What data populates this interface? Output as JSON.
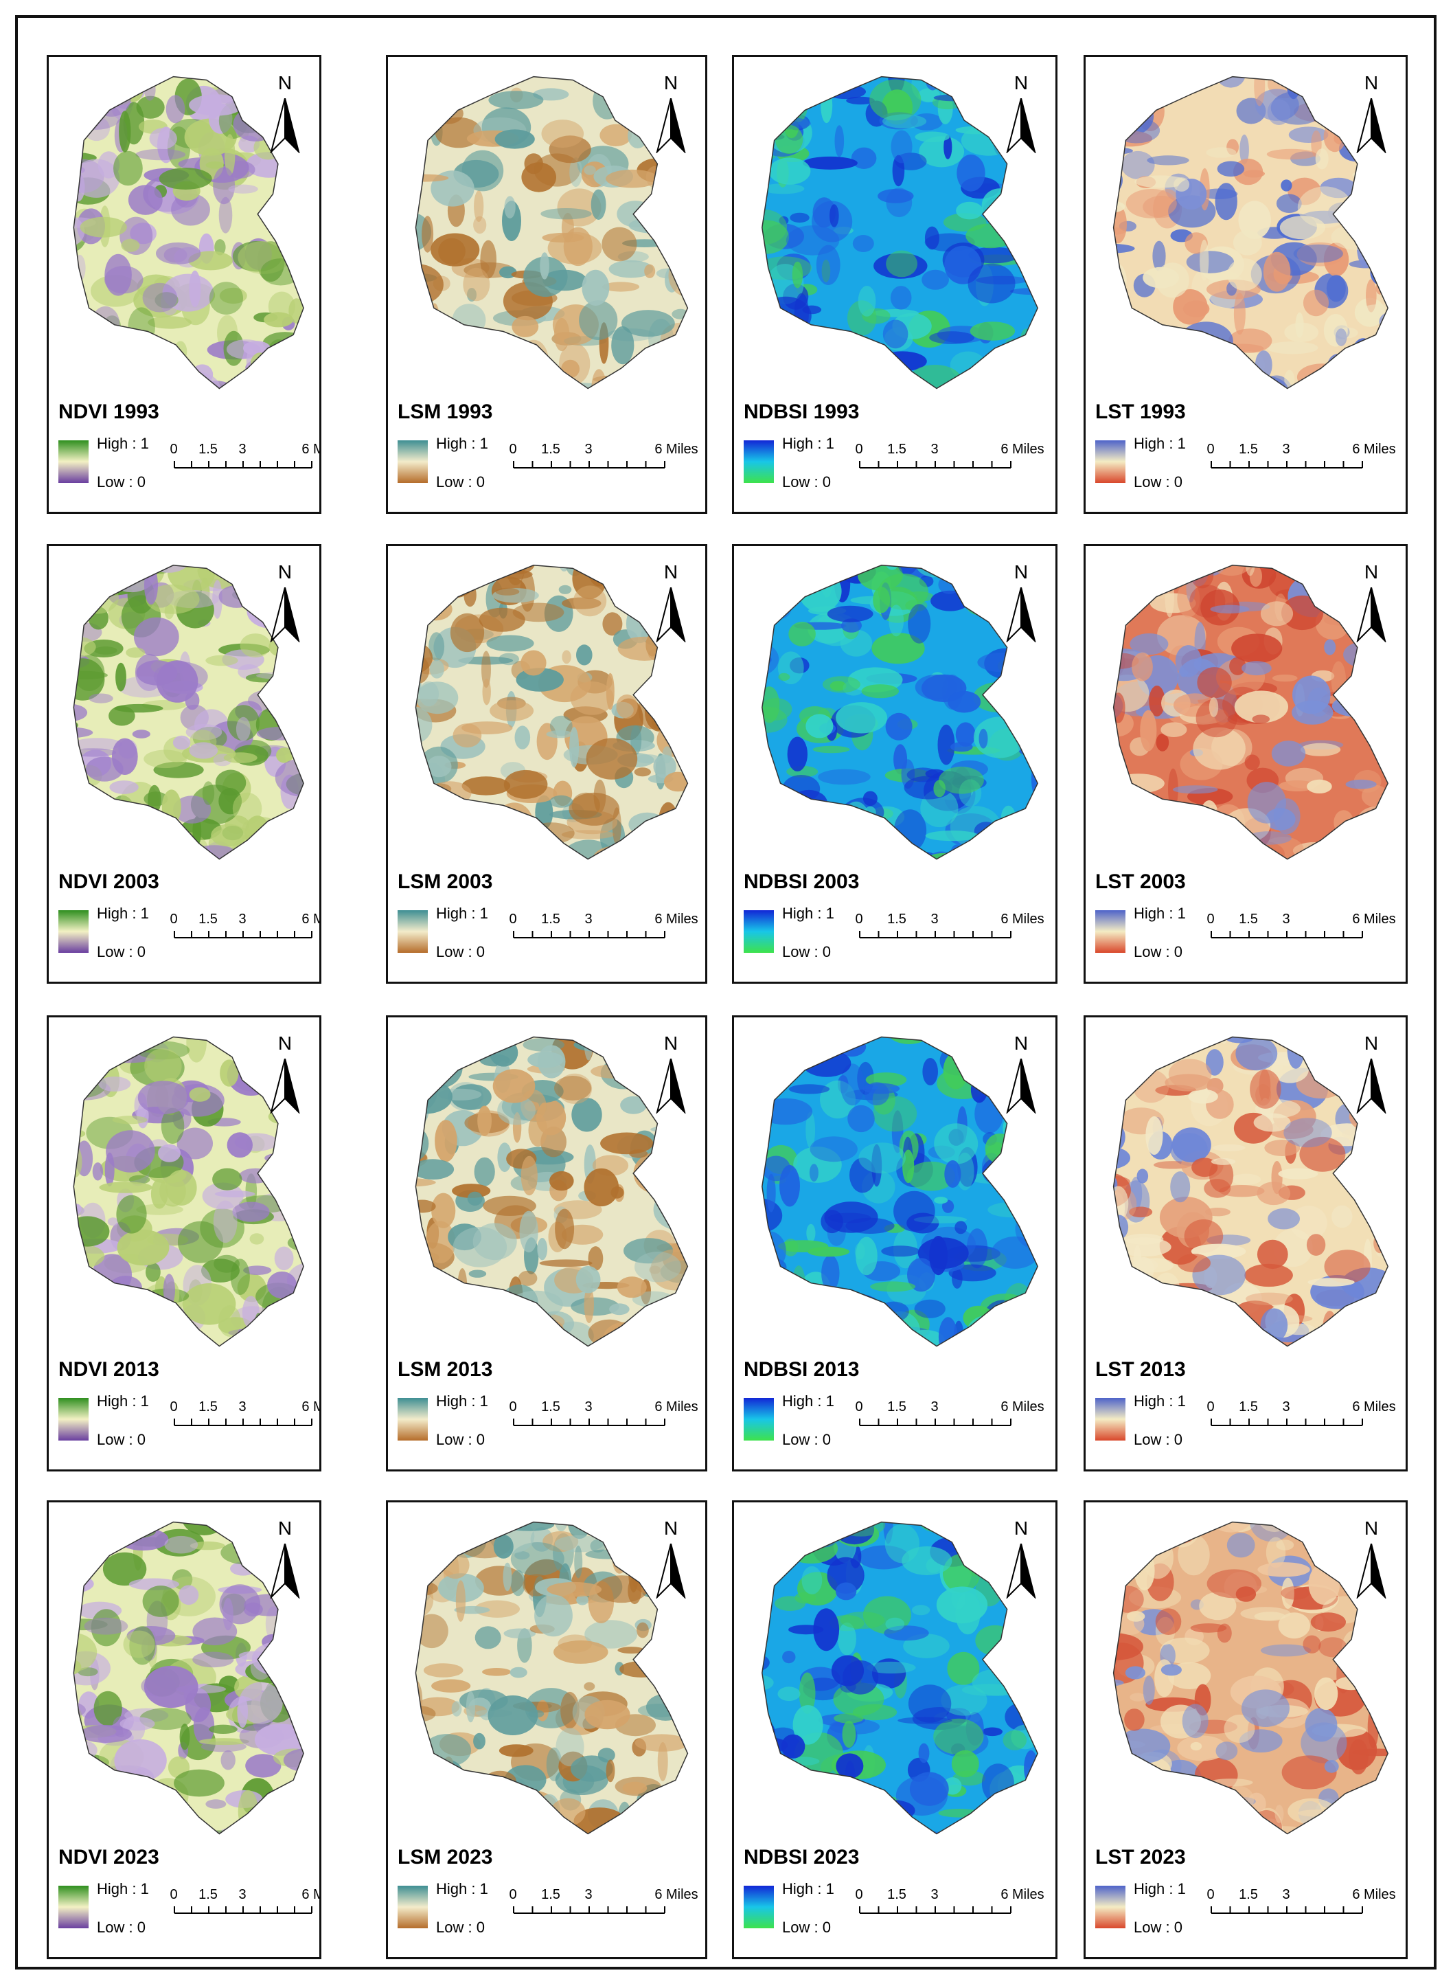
{
  "figure": {
    "panels": [
      {
        "title": "NDVI 1993",
        "palette": "ndvi"
      },
      {
        "title": "LSM 1993",
        "palette": "lsm"
      },
      {
        "title": "NDBSI 1993",
        "palette": "ndbsi"
      },
      {
        "title": "LST 1993",
        "palette": "lst1993"
      },
      {
        "title": "NDVI 2003",
        "palette": "ndvi"
      },
      {
        "title": "LSM 2003",
        "palette": "lsm"
      },
      {
        "title": "NDBSI 2003",
        "palette": "ndbsi"
      },
      {
        "title": "LST 2003",
        "palette": "lst2003"
      },
      {
        "title": "NDVI 2013",
        "palette": "ndvi"
      },
      {
        "title": "LSM 2013",
        "palette": "lsm"
      },
      {
        "title": "NDBSI 2013",
        "palette": "ndbsi"
      },
      {
        "title": "LST 2013",
        "palette": "lst2013"
      },
      {
        "title": "NDVI 2023",
        "palette": "ndvi"
      },
      {
        "title": "LSM 2023",
        "palette": "lsm"
      },
      {
        "title": "NDBSI 2023",
        "palette": "ndbsi"
      },
      {
        "title": "LST 2023",
        "palette": "lst2023"
      }
    ],
    "legend": {
      "high": "High : 1",
      "low": "Low : 0"
    },
    "north_label": "N",
    "scale_labels": [
      "0",
      "1.5",
      "3",
      "6 Miles"
    ],
    "palettes": {
      "ndvi": {
        "ramp": [
          "#2f8f1f",
          "#f3f1c4",
          "#6a3fa0"
        ],
        "fill": [
          "#e7edb8",
          "#b7cf74",
          "#5b9a30",
          "#c6aee0",
          "#9b7bc8"
        ]
      },
      "lsm": {
        "ramp": [
          "#3e8f93",
          "#f3eccb",
          "#b56d2b"
        ],
        "fill": [
          "#e9e6c6",
          "#9fc3bd",
          "#5e9c9c",
          "#d4a46a",
          "#b0712e"
        ]
      },
      "ndbsi": {
        "ramp": [
          "#1226d6",
          "#18c6e8",
          "#3ee24c"
        ],
        "fill": [
          "#1aa7e6",
          "#1f62e0",
          "#1234cf",
          "#33d2c9",
          "#42cc5a"
        ]
      },
      "lst1993": {
        "ramp": [
          "#4e63c9",
          "#f4ecc4",
          "#d9482c"
        ],
        "fill": [
          "#f2dcb4",
          "#e89a74",
          "#7d8fd6",
          "#4d6bd2",
          "#f1e7c2"
        ]
      },
      "lst2003": {
        "ramp": [
          "#4e63c9",
          "#f4ecc4",
          "#d9482c"
        ],
        "fill": [
          "#e07958",
          "#cf4630",
          "#f2dcb4",
          "#7a90d8",
          "#e89a74"
        ]
      },
      "lst2013": {
        "ramp": [
          "#4e63c9",
          "#f4ecc4",
          "#d9482c"
        ],
        "fill": [
          "#f2dfb6",
          "#e6a07a",
          "#d65a3c",
          "#6d86d8",
          "#f3e8c6"
        ]
      },
      "lst2023": {
        "ramp": [
          "#4e63c9",
          "#f4ecc4",
          "#d9482c"
        ],
        "fill": [
          "#e8b489",
          "#f2dfb6",
          "#d5553a",
          "#7a92d8",
          "#efc7a0"
        ]
      }
    }
  }
}
